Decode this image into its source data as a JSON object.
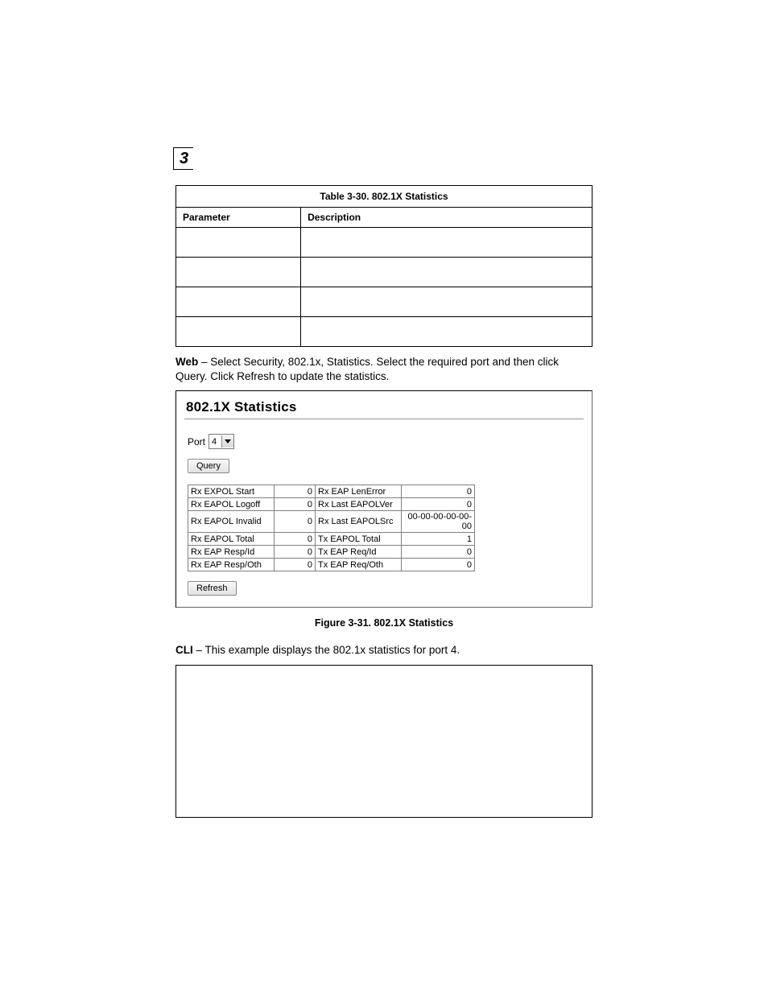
{
  "chapter_number": "3",
  "table": {
    "title": "Table 3-30.  802.1X Statistics",
    "header_param": "Parameter",
    "header_desc": "Description"
  },
  "web_text": {
    "bold": "Web",
    "rest": " – Select Security, 802.1x, Statistics. Select the required port and then click Query. Click Refresh to update the statistics."
  },
  "screenshot": {
    "title": "802.1X Statistics",
    "port_label": "Port",
    "port_value": "4",
    "query_btn": "Query",
    "refresh_btn": "Refresh",
    "rows": [
      {
        "l": "Rx EXPOL Start",
        "lv": "0",
        "r": "Rx EAP LenError",
        "rv": "0"
      },
      {
        "l": "Rx EAPOL Logoff",
        "lv": "0",
        "r": "Rx Last EAPOLVer",
        "rv": "0"
      },
      {
        "l": "Rx EAPOL Invalid",
        "lv": "0",
        "r": "Rx Last EAPOLSrc",
        "rv": "00-00-00-00-00-00"
      },
      {
        "l": "Rx EAPOL Total",
        "lv": "0",
        "r": "Tx EAPOL Total",
        "rv": "1"
      },
      {
        "l": "Rx EAP Resp/Id",
        "lv": "0",
        "r": "Tx EAP Req/Id",
        "rv": "0"
      },
      {
        "l": "Rx EAP Resp/Oth",
        "lv": "0",
        "r": "Tx EAP Req/Oth",
        "rv": "0"
      }
    ]
  },
  "figure_caption": "Figure 3-31.  802.1X Statistics",
  "cli_text": {
    "bold": "CLI",
    "rest": " – This example displays the 802.1x statistics for port 4."
  }
}
